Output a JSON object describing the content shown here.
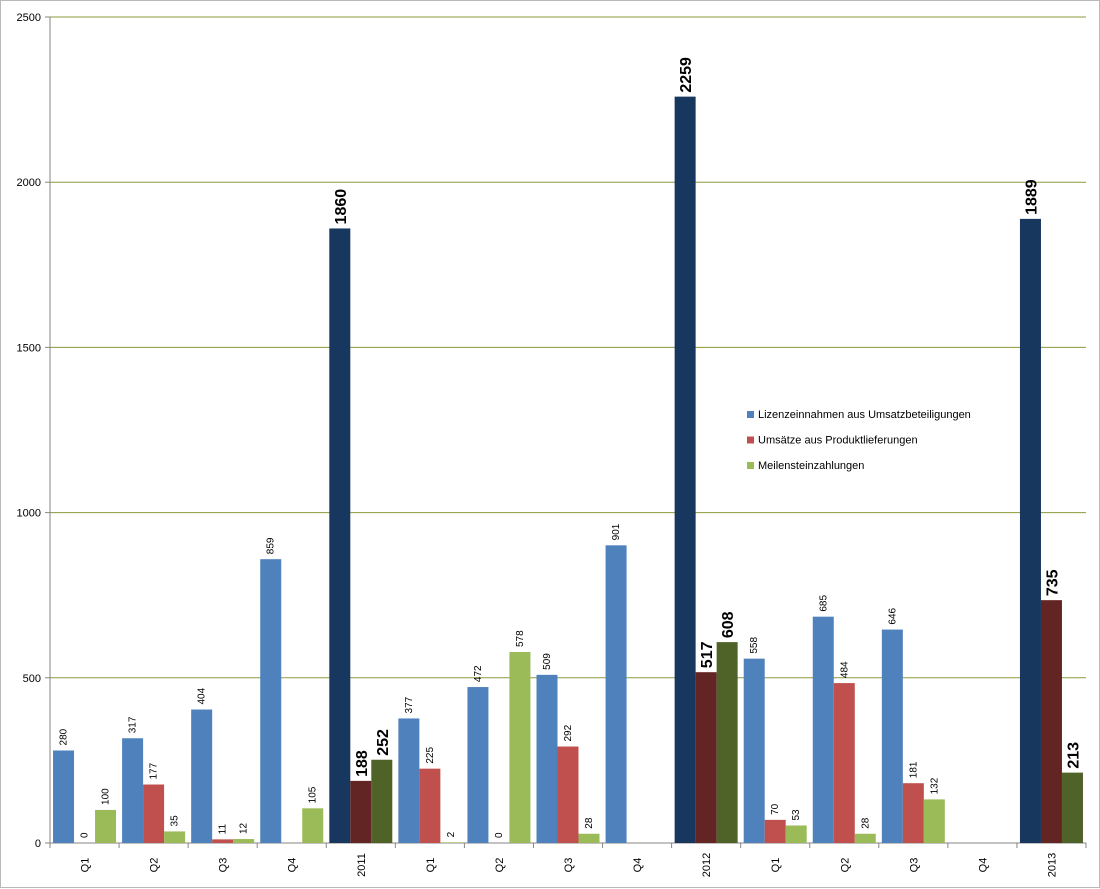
{
  "chart_data": {
    "type": "bar",
    "title": "",
    "xlabel": "",
    "ylabel": "",
    "ylim": [
      0,
      2500
    ],
    "yticks": [
      0,
      500,
      1000,
      1500,
      2000,
      2500
    ],
    "grid": true,
    "legend_position": "center-right",
    "categories": [
      "Q1",
      "Q2",
      "Q3",
      "Q4",
      "2011",
      "Q1",
      "Q2",
      "Q3",
      "Q4",
      "2012",
      "Q1",
      "Q2",
      "Q3",
      "Q4",
      "2013"
    ],
    "annual_categories": [
      "2011",
      "2012",
      "2013"
    ],
    "series": [
      {
        "name": "Lizenzeinnahmen aus Umsatzbeteiligungen",
        "color": "#4f81bd",
        "annual_color": "#17375e",
        "values": [
          280,
          317,
          404,
          859,
          1860,
          377,
          472,
          509,
          901,
          2259,
          558,
          685,
          646,
          null,
          1889
        ]
      },
      {
        "name": "Umsätze aus Produktlieferungen",
        "color": "#c0504d",
        "annual_color": "#632523",
        "values": [
          0,
          177,
          11,
          null,
          188,
          225,
          0,
          292,
          null,
          517,
          70,
          484,
          181,
          null,
          735
        ]
      },
      {
        "name": "Meilensteinzahlungen",
        "color": "#9bbb59",
        "annual_color": "#4f6228",
        "values": [
          100,
          35,
          12,
          105,
          252,
          2,
          578,
          28,
          null,
          608,
          53,
          28,
          132,
          null,
          213
        ]
      }
    ]
  }
}
